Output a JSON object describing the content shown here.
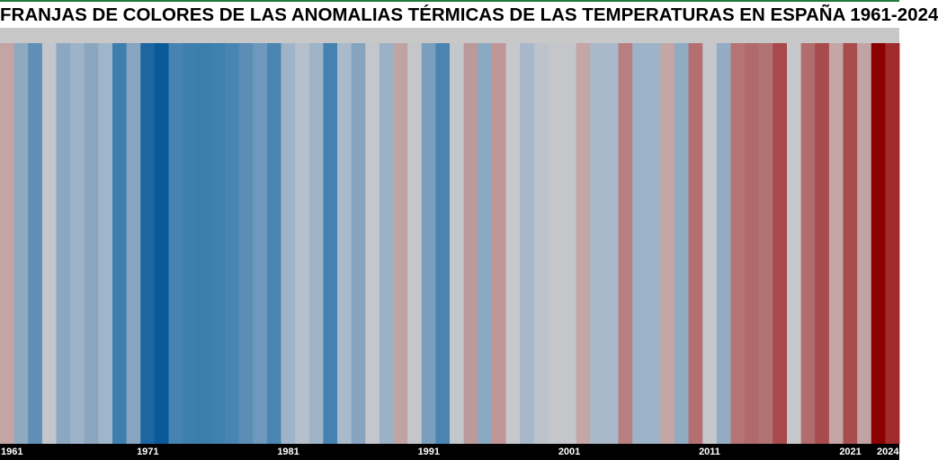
{
  "chart_data": {
    "type": "heatmap",
    "title": "FRANJAS DE COLORES DE LAS ANOMALIAS TÉRMICAS DE LAS TEMPERATURAS EN ESPAÑA 1961-2024",
    "years": [
      1961,
      1962,
      1963,
      1964,
      1965,
      1966,
      1967,
      1968,
      1969,
      1970,
      1971,
      1972,
      1973,
      1974,
      1975,
      1976,
      1977,
      1978,
      1979,
      1980,
      1981,
      1982,
      1983,
      1984,
      1985,
      1986,
      1987,
      1988,
      1989,
      1990,
      1991,
      1992,
      1993,
      1994,
      1995,
      1996,
      1997,
      1998,
      1999,
      2000,
      2001,
      2002,
      2003,
      2004,
      2005,
      2006,
      2007,
      2008,
      2009,
      2010,
      2011,
      2012,
      2013,
      2014,
      2015,
      2016,
      2017,
      2018,
      2019,
      2020,
      2021,
      2022,
      2023,
      2024
    ],
    "stripe_colors": [
      "#c3a5a6",
      "#8fa9c0",
      "#5f8fb5",
      "#c3c6ca",
      "#8aa8c1",
      "#9db3c8",
      "#8ba6bf",
      "#9fb6ca",
      "#3f7fae",
      "#87a5c0",
      "#1e66a1",
      "#0a5999",
      "#4683b1",
      "#3d7fad",
      "#3b7eac",
      "#3e80ae",
      "#4885b2",
      "#5b8db6",
      "#6e99bd",
      "#4b86b2",
      "#a0b4c9",
      "#b5c0cc",
      "#a0b4c9",
      "#4682b0",
      "#a9bacb",
      "#86a4bf",
      "#c3c6ca",
      "#9bb2c6",
      "#c0a4a4",
      "#c4c6c9",
      "#7a9fbd",
      "#4a84b2",
      "#c3c6ca",
      "#bb9a9b",
      "#8aa8c1",
      "#c09595",
      "#c7c8cb",
      "#a7b8ca",
      "#bcc3cb",
      "#c4c6ca",
      "#c4c6ca",
      "#c4a6a6",
      "#a9b9ca",
      "#a9b9ca",
      "#b97f80",
      "#9db3c7",
      "#9db3c7",
      "#c4a6a6",
      "#91abc3",
      "#b46f71",
      "#c6c7ca",
      "#93acc3",
      "#b57374",
      "#b16a6c",
      "#b17374",
      "#a8494c",
      "#c6c8cb",
      "#b26c6e",
      "#a84b4d",
      "#c4a6a6",
      "#a84c4d",
      "#c2a3a4",
      "#8b0000",
      "#a02a2c"
    ],
    "tick_labels": [
      "1961",
      "1971",
      "1981",
      "1991",
      "2001",
      "2011",
      "2021",
      "2024"
    ],
    "xlabel": "",
    "ylabel": ""
  }
}
